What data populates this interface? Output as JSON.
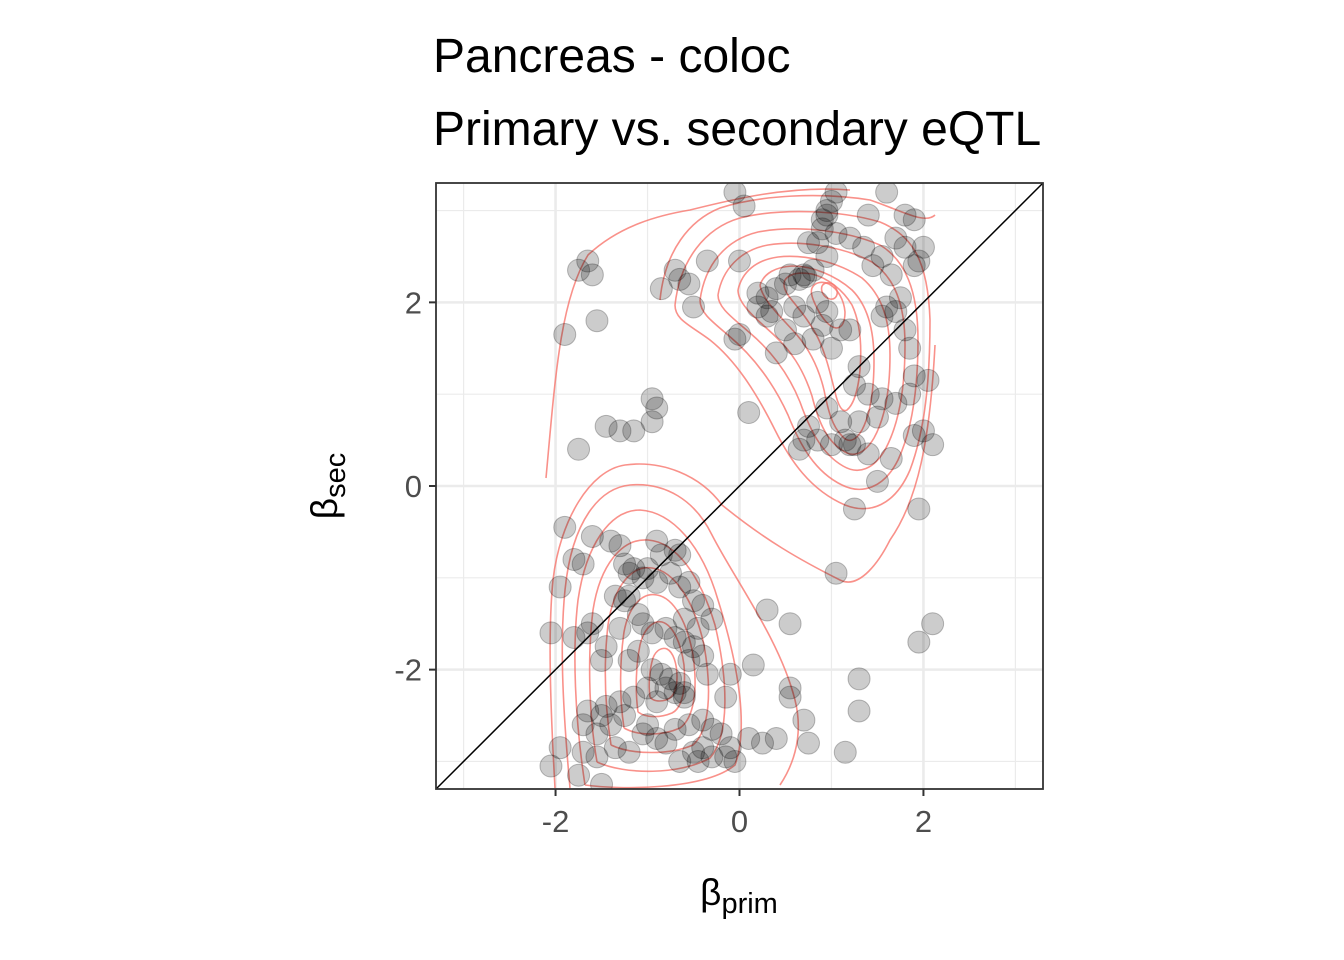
{
  "chart_data": {
    "type": "scatter",
    "title_lines": [
      "Pancreas - coloc",
      "Primary vs. secondary eQTL"
    ],
    "xlabel": {
      "symbol": "β",
      "subscript": "prim"
    },
    "ylabel": {
      "symbol": "β",
      "subscript": "sec"
    },
    "xlim": [
      -3.3,
      3.3
    ],
    "ylim": [
      -3.3,
      3.3
    ],
    "x_ticks": [
      -2,
      0,
      2
    ],
    "y_ticks": [
      -2,
      0,
      2
    ],
    "x_tick_labels": [
      "-2",
      "0",
      "2"
    ],
    "y_tick_labels": [
      "-2",
      "0",
      "2"
    ],
    "grid": true,
    "reference_line": {
      "slope": 1,
      "intercept": 0
    },
    "density_contours": true,
    "colors": {
      "points": "#000000",
      "contour": "#f8766d",
      "reference_line": "#000000",
      "grid": "#ebebeb",
      "panel_border": "#333333"
    },
    "series": [
      {
        "points": [
          [
            -1.65,
            2.45
          ],
          [
            -1.75,
            2.35
          ],
          [
            -1.6,
            2.3
          ],
          [
            -1.9,
            1.65
          ],
          [
            -1.55,
            1.8
          ],
          [
            -1.45,
            0.65
          ],
          [
            -1.3,
            0.6
          ],
          [
            -1.15,
            0.6
          ],
          [
            -1.75,
            0.4
          ],
          [
            -0.95,
            0.95
          ],
          [
            -0.9,
            0.85
          ],
          [
            -0.95,
            0.7
          ],
          [
            -0.7,
            2.35
          ],
          [
            -0.65,
            2.25
          ],
          [
            -0.55,
            2.2
          ],
          [
            -0.85,
            2.15
          ],
          [
            -0.35,
            2.45
          ],
          [
            -0.5,
            1.95
          ],
          [
            -0.05,
            3.2
          ],
          [
            0.05,
            3.05
          ],
          [
            0.0,
            2.45
          ],
          [
            0.0,
            1.65
          ],
          [
            -0.05,
            1.6
          ],
          [
            0.1,
            0.8
          ],
          [
            0.2,
            2.1
          ],
          [
            0.3,
            2.05
          ],
          [
            0.4,
            2.15
          ],
          [
            0.5,
            2.2
          ],
          [
            0.55,
            2.3
          ],
          [
            0.65,
            2.25
          ],
          [
            0.7,
            2.3
          ],
          [
            0.72,
            2.28
          ],
          [
            0.8,
            2.35
          ],
          [
            0.9,
            2.8
          ],
          [
            0.95,
            2.95
          ],
          [
            1.0,
            3.1
          ],
          [
            1.05,
            2.75
          ],
          [
            0.85,
            2.65
          ],
          [
            0.95,
            2.5
          ],
          [
            0.75,
            2.65
          ],
          [
            1.2,
            2.7
          ],
          [
            1.35,
            2.6
          ],
          [
            1.45,
            2.4
          ],
          [
            1.55,
            2.5
          ],
          [
            1.65,
            2.3
          ],
          [
            1.8,
            2.6
          ],
          [
            1.9,
            2.4
          ],
          [
            1.95,
            2.45
          ],
          [
            1.75,
            2.05
          ],
          [
            1.6,
            1.95
          ],
          [
            0.2,
            1.95
          ],
          [
            0.35,
            1.9
          ],
          [
            0.5,
            1.7
          ],
          [
            0.6,
            1.95
          ],
          [
            0.7,
            1.85
          ],
          [
            0.8,
            1.6
          ],
          [
            0.9,
            1.75
          ],
          [
            1.0,
            1.5
          ],
          [
            1.1,
            1.7
          ],
          [
            1.2,
            1.7
          ],
          [
            0.6,
            1.55
          ],
          [
            0.4,
            1.45
          ],
          [
            0.3,
            1.85
          ],
          [
            0.95,
            1.9
          ],
          [
            0.85,
            2.0
          ],
          [
            1.55,
            1.85
          ],
          [
            1.7,
            1.9
          ],
          [
            1.8,
            1.7
          ],
          [
            1.85,
            1.5
          ],
          [
            1.6,
            3.2
          ],
          [
            1.8,
            2.95
          ],
          [
            1.4,
            2.95
          ],
          [
            1.05,
            3.2
          ],
          [
            0.95,
            3.0
          ],
          [
            0.9,
            2.9
          ],
          [
            1.9,
            2.9
          ],
          [
            1.7,
            2.7
          ],
          [
            2.0,
            2.6
          ],
          [
            1.3,
            1.3
          ],
          [
            1.25,
            1.1
          ],
          [
            1.4,
            1.0
          ],
          [
            1.55,
            0.95
          ],
          [
            1.7,
            0.9
          ],
          [
            1.85,
            1.0
          ],
          [
            1.9,
            1.2
          ],
          [
            2.05,
            1.15
          ],
          [
            1.5,
            0.75
          ],
          [
            1.3,
            0.7
          ],
          [
            1.15,
            0.5
          ],
          [
            1.2,
            0.45
          ],
          [
            1.25,
            0.45
          ],
          [
            1.1,
            0.7
          ],
          [
            0.95,
            0.85
          ],
          [
            0.75,
            0.65
          ],
          [
            0.7,
            0.5
          ],
          [
            0.65,
            0.4
          ],
          [
            0.85,
            0.5
          ],
          [
            1.0,
            0.45
          ],
          [
            1.4,
            0.35
          ],
          [
            1.65,
            0.3
          ],
          [
            1.9,
            0.55
          ],
          [
            2.0,
            0.6
          ],
          [
            2.1,
            0.45
          ],
          [
            1.5,
            0.05
          ],
          [
            1.25,
            -0.25
          ],
          [
            1.95,
            -0.25
          ],
          [
            1.05,
            -0.95
          ],
          [
            -1.9,
            -0.45
          ],
          [
            -1.8,
            -0.8
          ],
          [
            -1.7,
            -0.85
          ],
          [
            -1.95,
            -1.1
          ],
          [
            -1.6,
            -0.55
          ],
          [
            -1.4,
            -0.6
          ],
          [
            -1.3,
            -0.65
          ],
          [
            -1.25,
            -0.85
          ],
          [
            -1.2,
            -0.95
          ],
          [
            -1.15,
            -0.9
          ],
          [
            -0.9,
            -0.6
          ],
          [
            -0.85,
            -0.75
          ],
          [
            -0.7,
            -0.7
          ],
          [
            -0.65,
            -0.75
          ],
          [
            -0.75,
            -0.95
          ],
          [
            -0.9,
            -1.05
          ],
          [
            -0.65,
            -1.1
          ],
          [
            -0.55,
            -1.05
          ],
          [
            -0.5,
            -1.25
          ],
          [
            -0.4,
            -1.3
          ],
          [
            -1.2,
            -1.2
          ],
          [
            -1.35,
            -1.2
          ],
          [
            -1.1,
            -1.4
          ],
          [
            -1.3,
            -1.55
          ],
          [
            -1.6,
            -1.5
          ],
          [
            -1.65,
            -1.6
          ],
          [
            -1.8,
            -1.65
          ],
          [
            -2.05,
            -1.6
          ],
          [
            -1.45,
            -1.75
          ],
          [
            -1.5,
            -1.9
          ],
          [
            -1.05,
            -1.5
          ],
          [
            -0.95,
            -1.6
          ],
          [
            -0.8,
            -1.55
          ],
          [
            -0.7,
            -1.65
          ],
          [
            -0.6,
            -1.7
          ],
          [
            -0.5,
            -1.75
          ],
          [
            -0.45,
            -1.55
          ],
          [
            -0.3,
            -1.45
          ],
          [
            -0.4,
            -1.85
          ],
          [
            -0.55,
            -1.9
          ],
          [
            -1.1,
            -1.8
          ],
          [
            -1.2,
            -1.9
          ],
          [
            -0.95,
            -2.0
          ],
          [
            -0.85,
            -2.05
          ],
          [
            -0.75,
            -2.1
          ],
          [
            -0.65,
            -2.15
          ],
          [
            -0.6,
            -2.25
          ],
          [
            -0.6,
            -2.3
          ],
          [
            -0.7,
            -2.25
          ],
          [
            -0.8,
            -2.2
          ],
          [
            -1.0,
            -2.2
          ],
          [
            -1.15,
            -2.3
          ],
          [
            -1.3,
            -2.35
          ],
          [
            -1.45,
            -2.4
          ],
          [
            -1.5,
            -2.5
          ],
          [
            -1.65,
            -2.45
          ],
          [
            -1.7,
            -2.6
          ],
          [
            -1.55,
            -2.7
          ],
          [
            -1.4,
            -2.6
          ],
          [
            -1.25,
            -2.5
          ],
          [
            -1.35,
            -2.85
          ],
          [
            -1.2,
            -2.9
          ],
          [
            -1.05,
            -2.7
          ],
          [
            -0.9,
            -2.75
          ],
          [
            -0.8,
            -2.8
          ],
          [
            -0.55,
            -2.6
          ],
          [
            -0.4,
            -2.55
          ],
          [
            -0.3,
            -2.65
          ],
          [
            -0.5,
            -2.9
          ],
          [
            -0.4,
            -2.85
          ],
          [
            -0.2,
            -2.7
          ],
          [
            -0.1,
            -2.85
          ],
          [
            -0.15,
            -2.95
          ],
          [
            -0.3,
            -2.95
          ],
          [
            -0.45,
            -3.0
          ],
          [
            -0.65,
            -3.0
          ],
          [
            -1.55,
            -2.95
          ],
          [
            -1.7,
            -2.9
          ],
          [
            -1.95,
            -2.85
          ],
          [
            -2.05,
            -3.05
          ],
          [
            -1.75,
            -3.15
          ],
          [
            -1.5,
            -3.25
          ],
          [
            -0.05,
            -3.0
          ],
          [
            0.1,
            -2.75
          ],
          [
            0.25,
            -2.8
          ],
          [
            0.4,
            -2.75
          ],
          [
            0.55,
            -2.3
          ],
          [
            0.55,
            -2.2
          ],
          [
            0.7,
            -2.55
          ],
          [
            0.75,
            -2.8
          ],
          [
            0.15,
            -1.95
          ],
          [
            -0.1,
            -2.05
          ],
          [
            -0.15,
            -2.3
          ],
          [
            0.3,
            -1.35
          ],
          [
            0.55,
            -1.5
          ],
          [
            1.15,
            -2.9
          ],
          [
            1.3,
            -2.45
          ],
          [
            1.3,
            -2.1
          ],
          [
            1.95,
            -1.7
          ],
          [
            2.1,
            -1.5
          ],
          [
            -1.05,
            -1.0
          ],
          [
            -1.0,
            -0.9
          ],
          [
            -1.25,
            -1.25
          ],
          [
            -0.6,
            -1.45
          ],
          [
            -0.35,
            -2.05
          ],
          [
            -0.9,
            -2.35
          ],
          [
            -1.0,
            -2.6
          ],
          [
            -0.7,
            -2.65
          ]
        ]
      }
    ]
  }
}
